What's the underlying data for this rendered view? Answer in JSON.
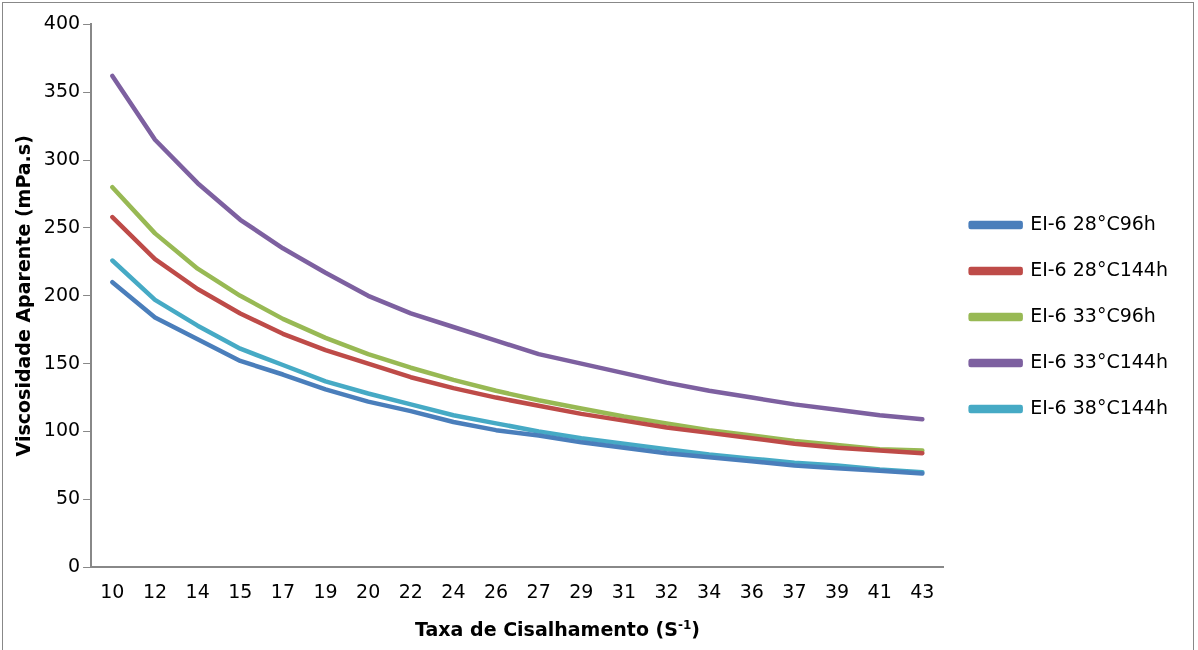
{
  "chart_data": {
    "type": "line",
    "xlabel": "Taxa de Cisalhamento (S$^{-1}$)",
    "ylabel": "Viscosidade Aparente (mPa.s)",
    "categories": [
      "10",
      "12",
      "14",
      "15",
      "17",
      "19",
      "20",
      "22",
      "24",
      "26",
      "27",
      "29",
      "31",
      "32",
      "34",
      "36",
      "37",
      "39",
      "41",
      "43"
    ],
    "ylim": [
      0,
      400
    ],
    "yticks": [
      0,
      50,
      100,
      150,
      200,
      250,
      300,
      350,
      400
    ],
    "grid": false,
    "legend": "right",
    "marker": "none",
    "line_style": "solid",
    "series": [
      {
        "name": "EI-6 28°C96h",
        "color": "#4a7ebb",
        "values": [
          210,
          184,
          168,
          152,
          142,
          131,
          122,
          115,
          107,
          101,
          97,
          92,
          88,
          84,
          81,
          78,
          75,
          73,
          71,
          69
        ]
      },
      {
        "name": "EI-6 28°C144h",
        "color": "#be4b48",
        "values": [
          258,
          227,
          205,
          187,
          172,
          160,
          150,
          140,
          132,
          125,
          119,
          113,
          108,
          103,
          99,
          95,
          91,
          88,
          86,
          84
        ]
      },
      {
        "name": "EI-6 33°C96h",
        "color": "#98b954",
        "values": [
          280,
          246,
          220,
          200,
          183,
          169,
          157,
          147,
          138,
          130,
          123,
          117,
          111,
          106,
          101,
          97,
          93,
          90,
          87,
          86
        ]
      },
      {
        "name": "EI-6 33°C144h",
        "color": "#7d60a0",
        "values": [
          362,
          315,
          283,
          256,
          235,
          217,
          200,
          187,
          177,
          167,
          157,
          150,
          143,
          136,
          130,
          125,
          120,
          116,
          112,
          109
        ]
      },
      {
        "name": "EI-6 38°C144h",
        "color": "#46aac5",
        "values": [
          226,
          197,
          178,
          161,
          149,
          137,
          128,
          120,
          112,
          106,
          100,
          95,
          91,
          87,
          83,
          80,
          77,
          75,
          72,
          70
        ]
      }
    ]
  }
}
